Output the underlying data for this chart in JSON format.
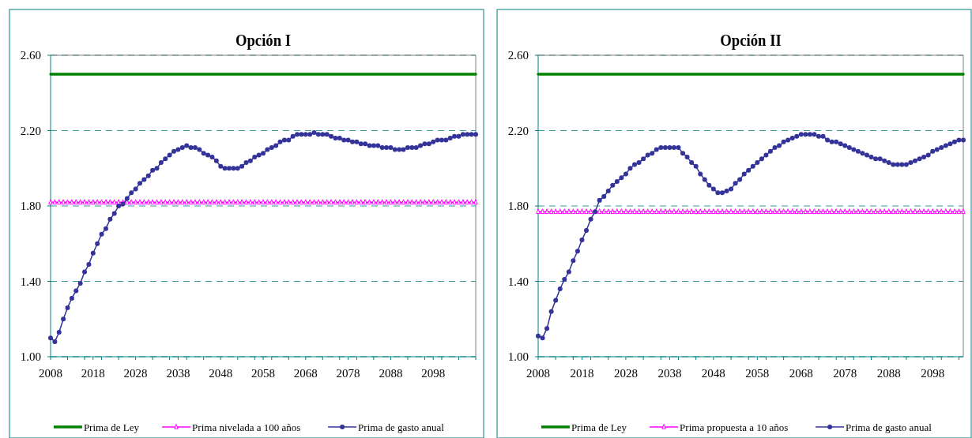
{
  "chart_data": [
    {
      "type": "line",
      "title": "Opción I",
      "legend": "bottom",
      "grid": "y",
      "xlim": [
        2008,
        2108
      ],
      "ylim": [
        1,
        2.6
      ],
      "xticks": [
        2008,
        {
          "value": 2012,
          "label": null
        },
        {
          "value": 2016,
          "label": null
        },
        2018,
        {
          "value": 2020,
          "label": null
        },
        {
          "value": 2024,
          "label": null
        },
        2028,
        {
          "value": 2032,
          "label": null
        },
        {
          "value": 2036,
          "label": null
        },
        2038,
        {
          "value": 2040,
          "label": null
        },
        {
          "value": 2044,
          "label": null
        },
        2048,
        {
          "value": 2052,
          "label": null
        },
        {
          "value": 2056,
          "label": null
        },
        2058,
        {
          "value": 2060,
          "label": null
        },
        {
          "value": 2064,
          "label": null
        },
        2068,
        {
          "value": 2072,
          "label": null
        },
        {
          "value": 2076,
          "label": null
        },
        2078,
        {
          "value": 2080,
          "label": null
        },
        {
          "value": 2084,
          "label": null
        },
        2088,
        {
          "value": 2092,
          "label": null
        },
        {
          "value": 2096,
          "label": null
        },
        2098,
        {
          "value": 2100,
          "label": null
        },
        {
          "value": 2104,
          "label": null
        },
        {
          "value": 2108,
          "label": null
        }
      ],
      "yticks": [
        {
          "value": 1,
          "label": "1.00"
        },
        {
          "value": 1.4,
          "label": "1.40"
        },
        {
          "value": 1.8,
          "label": "1.80"
        },
        {
          "value": 2.2,
          "label": "2.20"
        },
        {
          "value": 2.6,
          "label": "2.60"
        }
      ],
      "x": [
        2008,
        2009,
        2010,
        2011,
        2012,
        2013,
        2014,
        2015,
        2016,
        2017,
        2018,
        2019,
        2020,
        2021,
        2022,
        2023,
        2024,
        2025,
        2026,
        2027,
        2028,
        2029,
        2030,
        2031,
        2032,
        2033,
        2034,
        2035,
        2036,
        2037,
        2038,
        2039,
        2040,
        2041,
        2042,
        2043,
        2044,
        2045,
        2046,
        2047,
        2048,
        2049,
        2050,
        2051,
        2052,
        2053,
        2054,
        2055,
        2056,
        2057,
        2058,
        2059,
        2060,
        2061,
        2062,
        2063,
        2064,
        2065,
        2066,
        2067,
        2068,
        2069,
        2070,
        2071,
        2072,
        2073,
        2074,
        2075,
        2076,
        2077,
        2078,
        2079,
        2080,
        2081,
        2082,
        2083,
        2084,
        2085,
        2086,
        2087,
        2088,
        2089,
        2090,
        2091,
        2092,
        2093,
        2094,
        2095,
        2096,
        2097,
        2098,
        2099,
        2100,
        2101,
        2102,
        2103,
        2104,
        2105,
        2106,
        2107,
        2108
      ],
      "series": [
        {
          "name": "Prima de Ley",
          "color": "#008000",
          "marker": "none",
          "values": [
            2.5,
            2.5,
            2.5,
            2.5,
            2.5,
            2.5,
            2.5,
            2.5,
            2.5,
            2.5,
            2.5,
            2.5,
            2.5,
            2.5,
            2.5,
            2.5,
            2.5,
            2.5,
            2.5,
            2.5,
            2.5,
            2.5,
            2.5,
            2.5,
            2.5,
            2.5,
            2.5,
            2.5,
            2.5,
            2.5,
            2.5,
            2.5,
            2.5,
            2.5,
            2.5,
            2.5,
            2.5,
            2.5,
            2.5,
            2.5,
            2.5,
            2.5,
            2.5,
            2.5,
            2.5,
            2.5,
            2.5,
            2.5,
            2.5,
            2.5,
            2.5,
            2.5,
            2.5,
            2.5,
            2.5,
            2.5,
            2.5,
            2.5,
            2.5,
            2.5,
            2.5,
            2.5,
            2.5,
            2.5,
            2.5,
            2.5,
            2.5,
            2.5,
            2.5,
            2.5,
            2.5,
            2.5,
            2.5,
            2.5,
            2.5,
            2.5,
            2.5,
            2.5,
            2.5,
            2.5,
            2.5,
            2.5,
            2.5,
            2.5,
            2.5,
            2.5,
            2.5,
            2.5,
            2.5,
            2.5,
            2.5,
            2.5,
            2.5,
            2.5,
            2.5,
            2.5,
            2.5,
            2.5,
            2.5,
            2.5,
            2.5
          ]
        },
        {
          "name": "Prima nivelada a 100 años",
          "color": "#ff00ff",
          "marker": "triangle",
          "values": [
            1.82,
            1.82,
            1.82,
            1.82,
            1.82,
            1.82,
            1.82,
            1.82,
            1.82,
            1.82,
            1.82,
            1.82,
            1.82,
            1.82,
            1.82,
            1.82,
            1.82,
            1.82,
            1.82,
            1.82,
            1.82,
            1.82,
            1.82,
            1.82,
            1.82,
            1.82,
            1.82,
            1.82,
            1.82,
            1.82,
            1.82,
            1.82,
            1.82,
            1.82,
            1.82,
            1.82,
            1.82,
            1.82,
            1.82,
            1.82,
            1.82,
            1.82,
            1.82,
            1.82,
            1.82,
            1.82,
            1.82,
            1.82,
            1.82,
            1.82,
            1.82,
            1.82,
            1.82,
            1.82,
            1.82,
            1.82,
            1.82,
            1.82,
            1.82,
            1.82,
            1.82,
            1.82,
            1.82,
            1.82,
            1.82,
            1.82,
            1.82,
            1.82,
            1.82,
            1.82,
            1.82,
            1.82,
            1.82,
            1.82,
            1.82,
            1.82,
            1.82,
            1.82,
            1.82,
            1.82,
            1.82,
            1.82,
            1.82,
            1.82,
            1.82,
            1.82,
            1.82,
            1.82,
            1.82,
            1.82,
            1.82,
            1.82,
            1.82,
            1.82,
            1.82,
            1.82,
            1.82,
            1.82,
            1.82,
            1.82,
            1.82
          ]
        },
        {
          "name": "Prima de gasto anual",
          "color": "#333399",
          "marker": "circle",
          "values": [
            1.1,
            1.08,
            1.13,
            1.2,
            1.26,
            1.31,
            1.35,
            1.39,
            1.45,
            1.49,
            1.55,
            1.6,
            1.65,
            1.68,
            1.73,
            1.76,
            1.8,
            1.81,
            1.84,
            1.87,
            1.89,
            1.92,
            1.94,
            1.96,
            1.99,
            2.0,
            2.03,
            2.05,
            2.07,
            2.09,
            2.1,
            2.11,
            2.12,
            2.11,
            2.11,
            2.1,
            2.08,
            2.07,
            2.06,
            2.04,
            2.01,
            2.0,
            2.0,
            2.0,
            2.0,
            2.01,
            2.03,
            2.04,
            2.06,
            2.07,
            2.08,
            2.1,
            2.11,
            2.12,
            2.14,
            2.15,
            2.15,
            2.17,
            2.18,
            2.18,
            2.18,
            2.18,
            2.19,
            2.18,
            2.18,
            2.18,
            2.17,
            2.16,
            2.16,
            2.15,
            2.15,
            2.14,
            2.14,
            2.13,
            2.13,
            2.12,
            2.12,
            2.12,
            2.11,
            2.11,
            2.11,
            2.1,
            2.1,
            2.1,
            2.11,
            2.11,
            2.11,
            2.12,
            2.13,
            2.13,
            2.14,
            2.15,
            2.15,
            2.15,
            2.16,
            2.17,
            2.17,
            2.18,
            2.18,
            2.18,
            2.18
          ]
        }
      ]
    },
    {
      "type": "line",
      "title": "Opción II",
      "legend": "bottom",
      "grid": "y",
      "xlim": [
        2008,
        2105
      ],
      "ylim": [
        1,
        2.6
      ],
      "xticks": [
        2008,
        {
          "value": 2012,
          "label": null
        },
        {
          "value": 2016,
          "label": null
        },
        2018,
        {
          "value": 2020,
          "label": null
        },
        {
          "value": 2024,
          "label": null
        },
        2028,
        {
          "value": 2032,
          "label": null
        },
        {
          "value": 2036,
          "label": null
        },
        2038,
        {
          "value": 2040,
          "label": null
        },
        {
          "value": 2044,
          "label": null
        },
        2048,
        {
          "value": 2052,
          "label": null
        },
        {
          "value": 2056,
          "label": null
        },
        2058,
        {
          "value": 2060,
          "label": null
        },
        {
          "value": 2064,
          "label": null
        },
        2068,
        {
          "value": 2072,
          "label": null
        },
        {
          "value": 2076,
          "label": null
        },
        2078,
        {
          "value": 2080,
          "label": null
        },
        {
          "value": 2084,
          "label": null
        },
        2088,
        {
          "value": 2092,
          "label": null
        },
        {
          "value": 2096,
          "label": null
        },
        2098,
        {
          "value": 2100,
          "label": null
        },
        {
          "value": 2104,
          "label": null
        }
      ],
      "yticks": [
        {
          "value": 1,
          "label": "1.00"
        },
        {
          "value": 1.4,
          "label": "1.40"
        },
        {
          "value": 1.8,
          "label": "1.80"
        },
        {
          "value": 2.2,
          "label": "2.20"
        },
        {
          "value": 2.6,
          "label": "2.60"
        }
      ],
      "x": [
        2008,
        2009,
        2010,
        2011,
        2012,
        2013,
        2014,
        2015,
        2016,
        2017,
        2018,
        2019,
        2020,
        2021,
        2022,
        2023,
        2024,
        2025,
        2026,
        2027,
        2028,
        2029,
        2030,
        2031,
        2032,
        2033,
        2034,
        2035,
        2036,
        2037,
        2038,
        2039,
        2040,
        2041,
        2042,
        2043,
        2044,
        2045,
        2046,
        2047,
        2048,
        2049,
        2050,
        2051,
        2052,
        2053,
        2054,
        2055,
        2056,
        2057,
        2058,
        2059,
        2060,
        2061,
        2062,
        2063,
        2064,
        2065,
        2066,
        2067,
        2068,
        2069,
        2070,
        2071,
        2072,
        2073,
        2074,
        2075,
        2076,
        2077,
        2078,
        2079,
        2080,
        2081,
        2082,
        2083,
        2084,
        2085,
        2086,
        2087,
        2088,
        2089,
        2090,
        2091,
        2092,
        2093,
        2094,
        2095,
        2096,
        2097,
        2098,
        2099,
        2100,
        2101,
        2102,
        2103,
        2104,
        2105
      ],
      "series": [
        {
          "name": "Prima de Ley",
          "color": "#008000",
          "marker": "none",
          "values": [
            2.5,
            2.5,
            2.5,
            2.5,
            2.5,
            2.5,
            2.5,
            2.5,
            2.5,
            2.5,
            2.5,
            2.5,
            2.5,
            2.5,
            2.5,
            2.5,
            2.5,
            2.5,
            2.5,
            2.5,
            2.5,
            2.5,
            2.5,
            2.5,
            2.5,
            2.5,
            2.5,
            2.5,
            2.5,
            2.5,
            2.5,
            2.5,
            2.5,
            2.5,
            2.5,
            2.5,
            2.5,
            2.5,
            2.5,
            2.5,
            2.5,
            2.5,
            2.5,
            2.5,
            2.5,
            2.5,
            2.5,
            2.5,
            2.5,
            2.5,
            2.5,
            2.5,
            2.5,
            2.5,
            2.5,
            2.5,
            2.5,
            2.5,
            2.5,
            2.5,
            2.5,
            2.5,
            2.5,
            2.5,
            2.5,
            2.5,
            2.5,
            2.5,
            2.5,
            2.5,
            2.5,
            2.5,
            2.5,
            2.5,
            2.5,
            2.5,
            2.5,
            2.5,
            2.5,
            2.5,
            2.5,
            2.5,
            2.5,
            2.5,
            2.5,
            2.5,
            2.5,
            2.5,
            2.5,
            2.5,
            2.5,
            2.5,
            2.5,
            2.5,
            2.5,
            2.5,
            2.5,
            2.5
          ]
        },
        {
          "name": "Prima propuesta a 10 años",
          "color": "#ff00ff",
          "marker": "triangle",
          "values": [
            1.77,
            1.77,
            1.77,
            1.77,
            1.77,
            1.77,
            1.77,
            1.77,
            1.77,
            1.77,
            1.77,
            1.77,
            1.77,
            1.77,
            1.77,
            1.77,
            1.77,
            1.77,
            1.77,
            1.77,
            1.77,
            1.77,
            1.77,
            1.77,
            1.77,
            1.77,
            1.77,
            1.77,
            1.77,
            1.77,
            1.77,
            1.77,
            1.77,
            1.77,
            1.77,
            1.77,
            1.77,
            1.77,
            1.77,
            1.77,
            1.77,
            1.77,
            1.77,
            1.77,
            1.77,
            1.77,
            1.77,
            1.77,
            1.77,
            1.77,
            1.77,
            1.77,
            1.77,
            1.77,
            1.77,
            1.77,
            1.77,
            1.77,
            1.77,
            1.77,
            1.77,
            1.77,
            1.77,
            1.77,
            1.77,
            1.77,
            1.77,
            1.77,
            1.77,
            1.77,
            1.77,
            1.77,
            1.77,
            1.77,
            1.77,
            1.77,
            1.77,
            1.77,
            1.77,
            1.77,
            1.77,
            1.77,
            1.77,
            1.77,
            1.77,
            1.77,
            1.77,
            1.77,
            1.77,
            1.77,
            1.77,
            1.77,
            1.77,
            1.77,
            1.77,
            1.77,
            1.77,
            1.77
          ]
        },
        {
          "name": "Prima de gasto anual",
          "color": "#333399",
          "marker": "circle",
          "values": [
            1.11,
            1.1,
            1.15,
            1.24,
            1.3,
            1.36,
            1.41,
            1.45,
            1.51,
            1.56,
            1.62,
            1.67,
            1.73,
            1.77,
            1.83,
            1.85,
            1.88,
            1.91,
            1.93,
            1.95,
            1.97,
            2.0,
            2.02,
            2.03,
            2.05,
            2.07,
            2.08,
            2.1,
            2.11,
            2.11,
            2.11,
            2.11,
            2.11,
            2.08,
            2.06,
            2.03,
            2.01,
            1.97,
            1.94,
            1.91,
            1.89,
            1.87,
            1.87,
            1.88,
            1.89,
            1.92,
            1.94,
            1.97,
            1.99,
            2.01,
            2.03,
            2.05,
            2.07,
            2.09,
            2.11,
            2.12,
            2.14,
            2.15,
            2.16,
            2.17,
            2.18,
            2.18,
            2.18,
            2.18,
            2.17,
            2.17,
            2.15,
            2.14,
            2.14,
            2.13,
            2.12,
            2.11,
            2.1,
            2.09,
            2.08,
            2.07,
            2.06,
            2.05,
            2.05,
            2.04,
            2.03,
            2.02,
            2.02,
            2.02,
            2.02,
            2.03,
            2.04,
            2.05,
            2.06,
            2.07,
            2.09,
            2.1,
            2.11,
            2.12,
            2.13,
            2.14,
            2.15,
            2.15
          ]
        }
      ]
    }
  ]
}
